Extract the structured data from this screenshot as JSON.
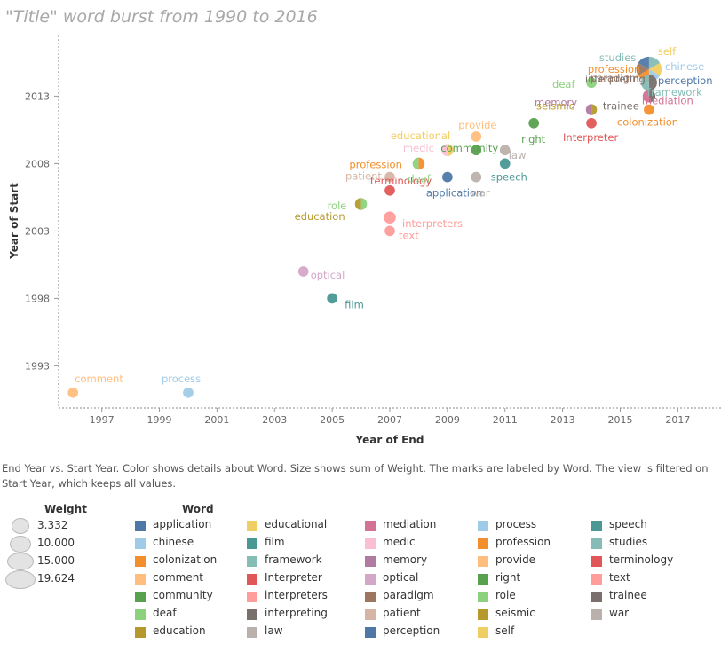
{
  "chart_title": "\"Title\" word burst from 1990 to 2016",
  "caption": "End Year vs. Start Year.  Color shows details about Word.  Size shows sum of Weight.  The marks are labeled by Word. The view is filtered on Start Year, which keeps all values.",
  "chart_data": {
    "type": "scatter",
    "title": "\"Title\" word burst from 1990 to 2016",
    "xlabel": "Year of End",
    "ylabel": "Year of Start",
    "xlim": [
      1995.5,
      2018.5
    ],
    "ylim": [
      1990,
      2017.5
    ],
    "x_ticks": [
      1997,
      1999,
      2001,
      2003,
      2005,
      2007,
      2009,
      2011,
      2013,
      2015,
      2017
    ],
    "y_ticks": [
      1993,
      1998,
      2003,
      2008,
      2013
    ],
    "grid": false,
    "size_encoding": "Weight",
    "color_encoding": "Word",
    "points": [
      {
        "word": "comment",
        "x": 1996,
        "y": 1991,
        "weight": 3.332,
        "color": "#FFBE7D"
      },
      {
        "word": "process",
        "x": 2000,
        "y": 1991,
        "weight": 3.332,
        "color": "#A0CBE8"
      },
      {
        "word": "optical",
        "x": 2004,
        "y": 2000,
        "weight": 3.332,
        "color": "#D4A6C8"
      },
      {
        "word": "film",
        "x": 2005,
        "y": 1998,
        "weight": 3.332,
        "color": "#499894"
      },
      {
        "word": "role",
        "x": 2006,
        "y": 2005,
        "weight": 4.5,
        "color": "#8CD17D"
      },
      {
        "word": "education",
        "x": 2006,
        "y": 2005,
        "weight": 4.5,
        "color": "#B6992D"
      },
      {
        "word": "terminology",
        "x": 2007,
        "y": 2006,
        "weight": 3.332,
        "color": "#E15759"
      },
      {
        "word": "patient",
        "x": 2007,
        "y": 2007,
        "weight": 3.332,
        "color": "#D7B5A6"
      },
      {
        "word": "interpreters",
        "x": 2007,
        "y": 2004,
        "weight": 4.5,
        "color": "#FF9D9A"
      },
      {
        "word": "text",
        "x": 2007,
        "y": 2003,
        "weight": 3.332,
        "color": "#FF9D9A"
      },
      {
        "word": "profession",
        "x": 2008,
        "y": 2008,
        "weight": 4.5,
        "color": "#F28E2B"
      },
      {
        "word": "deaf",
        "x": 2008,
        "y": 2008,
        "weight": 4.5,
        "color": "#8CD17D"
      },
      {
        "word": "educational",
        "x": 2009,
        "y": 2009,
        "weight": 4.5,
        "color": "#F1CE63"
      },
      {
        "word": "medic",
        "x": 2009,
        "y": 2009,
        "weight": 4.5,
        "color": "#FABFD2"
      },
      {
        "word": "application",
        "x": 2009,
        "y": 2007,
        "weight": 3.332,
        "color": "#4E79A7"
      },
      {
        "word": "provide",
        "x": 2010,
        "y": 2010,
        "weight": 3.332,
        "color": "#FFBE7D"
      },
      {
        "word": "community",
        "x": 2010,
        "y": 2009,
        "weight": 3.332,
        "color": "#59A14F"
      },
      {
        "word": "war",
        "x": 2010,
        "y": 2007,
        "weight": 3.332,
        "color": "#BAB0AC"
      },
      {
        "word": "law",
        "x": 2011,
        "y": 2009,
        "weight": 3.332,
        "color": "#BAB0AC"
      },
      {
        "word": "speech",
        "x": 2011,
        "y": 2008,
        "weight": 3.332,
        "color": "#499894"
      },
      {
        "word": "right",
        "x": 2012,
        "y": 2011,
        "weight": 3.332,
        "color": "#59A14F"
      },
      {
        "word": "seismic",
        "x": 2014,
        "y": 2012,
        "weight": 3.8,
        "color": "#B6992D"
      },
      {
        "word": "memory",
        "x": 2014,
        "y": 2012,
        "weight": 3.8,
        "color": "#B07AA1"
      },
      {
        "word": "Interpreter",
        "x": 2014,
        "y": 2011,
        "weight": 3.332,
        "color": "#E15759"
      },
      {
        "word": "deaf",
        "x": 2014,
        "y": 2014,
        "weight": 3.332,
        "color": "#8CD17D"
      },
      {
        "word": "colonization",
        "x": 2016,
        "y": 2012,
        "weight": 3.332,
        "color": "#F28E2B"
      },
      {
        "word": "studies",
        "x": 2016,
        "y": 2015,
        "weight": 19.624,
        "color": "#86BCB6"
      },
      {
        "word": "self",
        "x": 2016,
        "y": 2015,
        "weight": 19.624,
        "color": "#F1CE63"
      },
      {
        "word": "chinese",
        "x": 2016,
        "y": 2015,
        "weight": 19.624,
        "color": "#A0CBE8"
      },
      {
        "word": "profession",
        "x": 2016,
        "y": 2015,
        "weight": 19.624,
        "color": "#F28E2B"
      },
      {
        "word": "paradigm",
        "x": 2016,
        "y": 2015,
        "weight": 19.624,
        "color": "#9D7660"
      },
      {
        "word": "perception",
        "x": 2016,
        "y": 2015,
        "weight": 19.624,
        "color": "#4E79A7"
      },
      {
        "word": "interpreting",
        "x": 2016,
        "y": 2014,
        "weight": 8,
        "color": "#79706E"
      },
      {
        "word": "framework",
        "x": 2016,
        "y": 2014,
        "weight": 8,
        "color": "#86BCB6"
      },
      {
        "word": "trainee",
        "x": 2016,
        "y": 2013,
        "weight": 5,
        "color": "#79706E"
      },
      {
        "word": "mediation",
        "x": 2016,
        "y": 2013,
        "weight": 5,
        "color": "#D37295"
      }
    ]
  },
  "legend": {
    "weight_title": "Weight",
    "weight_items": [
      "3.332",
      "10.000",
      "15.000",
      "19.624"
    ],
    "word_title": "Word",
    "word_items": [
      {
        "label": "application",
        "color": "#4E79A7"
      },
      {
        "label": "chinese",
        "color": "#A0CBE8"
      },
      {
        "label": "colonization",
        "color": "#F28E2B"
      },
      {
        "label": "comment",
        "color": "#FFBE7D"
      },
      {
        "label": "community",
        "color": "#59A14F"
      },
      {
        "label": "deaf",
        "color": "#8CD17D"
      },
      {
        "label": "education",
        "color": "#B6992D"
      },
      {
        "label": "educational",
        "color": "#F1CE63"
      },
      {
        "label": "film",
        "color": "#499894"
      },
      {
        "label": "framework",
        "color": "#86BCB6"
      },
      {
        "label": "Interpreter",
        "color": "#E15759"
      },
      {
        "label": "interpreters",
        "color": "#FF9D9A"
      },
      {
        "label": "interpreting",
        "color": "#79706E"
      },
      {
        "label": "law",
        "color": "#BAB0AC"
      },
      {
        "label": "mediation",
        "color": "#D37295"
      },
      {
        "label": "medic",
        "color": "#FABFD2"
      },
      {
        "label": "memory",
        "color": "#B07AA1"
      },
      {
        "label": "optical",
        "color": "#D4A6C8"
      },
      {
        "label": "paradigm",
        "color": "#9D7660"
      },
      {
        "label": "patient",
        "color": "#D7B5A6"
      },
      {
        "label": "perception",
        "color": "#4E79A7"
      },
      {
        "label": "process",
        "color": "#A0CBE8"
      },
      {
        "label": "profession",
        "color": "#F28E2B"
      },
      {
        "label": "provide",
        "color": "#FFBE7D"
      },
      {
        "label": "right",
        "color": "#59A14F"
      },
      {
        "label": "role",
        "color": "#8CD17D"
      },
      {
        "label": "seismic",
        "color": "#B6992D"
      },
      {
        "label": "self",
        "color": "#F1CE63"
      },
      {
        "label": "speech",
        "color": "#499894"
      },
      {
        "label": "studies",
        "color": "#86BCB6"
      },
      {
        "label": "terminology",
        "color": "#E15759"
      },
      {
        "label": "text",
        "color": "#FF9D9A"
      },
      {
        "label": "trainee",
        "color": "#79706E"
      },
      {
        "label": "war",
        "color": "#BAB0AC"
      }
    ]
  }
}
